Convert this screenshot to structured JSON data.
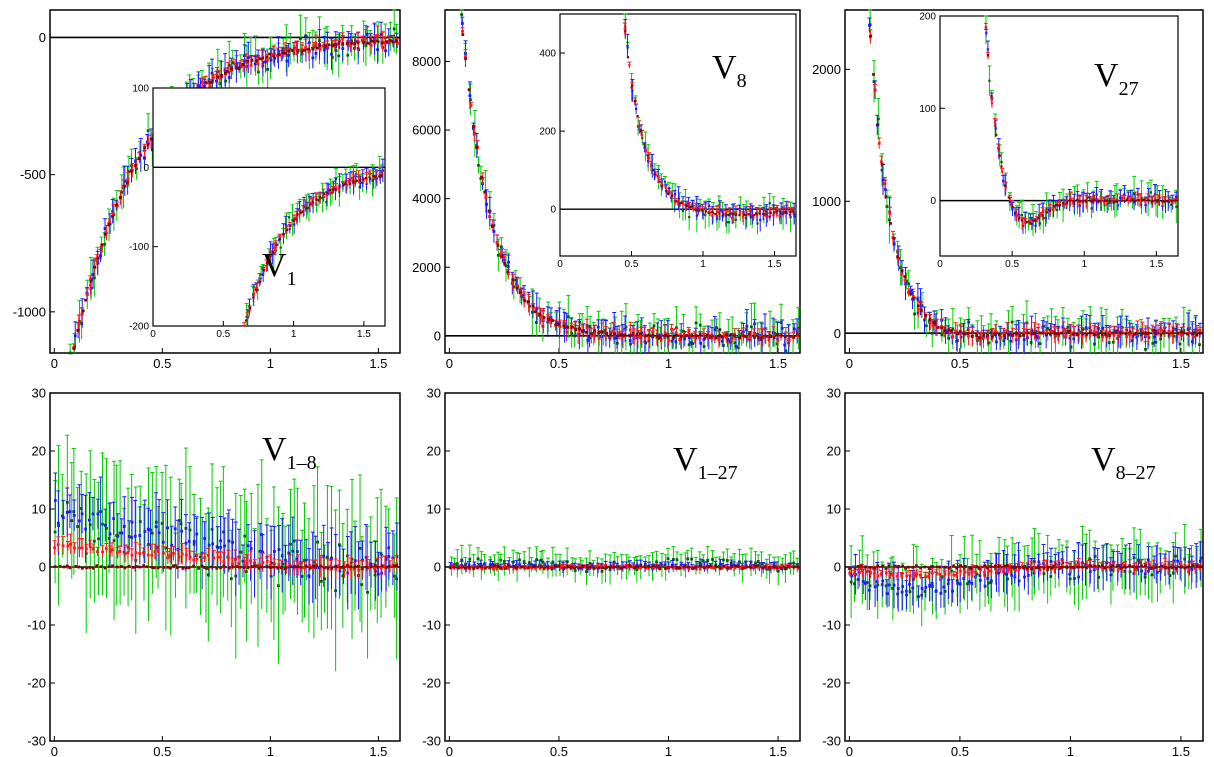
{
  "figure": {
    "colors": {
      "green": "#00cc00",
      "blue": "#1a1aff",
      "red": "#ff1a1a",
      "darkred": "#8b0000",
      "axis": "#000000"
    },
    "series_names": [
      "green",
      "blue",
      "red",
      "darkred"
    ]
  },
  "chart_data": [
    {
      "id": "p1",
      "type": "scatter",
      "title_main": "V",
      "title_sub": "1",
      "xlim": [
        -0.02,
        1.6
      ],
      "ylim": [
        -1150,
        100
      ],
      "xticks": [
        "0",
        "0.5",
        "1",
        "1.5"
      ],
      "xtick_values": [
        0,
        0.5,
        1,
        1.5
      ],
      "yticks": [
        "-1000",
        "-500",
        "0"
      ],
      "ytick_values": [
        -1000,
        -500,
        0
      ],
      "curve": {
        "kind": "v1",
        "A": 1500,
        "k": 3.1
      },
      "inset": {
        "xlim": [
          0,
          1.65
        ],
        "ylim": [
          -200,
          100
        ],
        "xticks": [
          "0",
          "0.5",
          "1",
          "1.5"
        ],
        "xtick_values": [
          0,
          0.5,
          1,
          1.5
        ],
        "yticks": [
          "-200",
          "-100",
          "0",
          "100"
        ],
        "ytick_values": [
          -200,
          -100,
          0,
          100
        ],
        "curve": {
          "kind": "v1",
          "A": 1500,
          "k": 3.1
        }
      }
    },
    {
      "id": "p2",
      "type": "scatter",
      "title_main": "V",
      "title_sub": "8",
      "xlim": [
        -0.02,
        1.6
      ],
      "ylim": [
        -500,
        9500
      ],
      "xticks": [
        "0",
        "0.5",
        "1",
        "1.5"
      ],
      "xtick_values": [
        0,
        0.5,
        1,
        1.5
      ],
      "yticks": [
        "0",
        "2000",
        "4000",
        "6000",
        "8000"
      ],
      "ytick_values": [
        0,
        2000,
        4000,
        6000,
        8000
      ],
      "curve": {
        "kind": "decay",
        "A": 14000,
        "k": 7.5,
        "d": -15
      },
      "inset": {
        "xlim": [
          0,
          1.65
        ],
        "ylim": [
          -120,
          500
        ],
        "xticks": [
          "0",
          "0.5",
          "1",
          "1.5"
        ],
        "xtick_values": [
          0,
          0.5,
          1,
          1.5
        ],
        "yticks": [
          "0",
          "200",
          "400"
        ],
        "ytick_values": [
          0,
          200,
          400
        ],
        "curve": {
          "kind": "decay",
          "A": 14000,
          "k": 7.5,
          "d": -15
        }
      }
    },
    {
      "id": "p3",
      "type": "scatter",
      "title_main": "V",
      "title_sub": "27",
      "xlim": [
        -0.02,
        1.6
      ],
      "ylim": [
        -150,
        2450
      ],
      "xticks": [
        "0",
        "0.5",
        "1",
        "1.5"
      ],
      "xtick_values": [
        0,
        0.5,
        1,
        1.5
      ],
      "yticks": [
        "0",
        "1000",
        "2000"
      ],
      "ytick_values": [
        0,
        1000,
        2000
      ],
      "curve": {
        "kind": "v27",
        "A": 6500,
        "k": 11,
        "dip": 35
      },
      "inset": {
        "xlim": [
          0,
          1.65
        ],
        "ylim": [
          -60,
          200
        ],
        "xticks": [
          "0",
          "0.5",
          "1",
          "1.5"
        ],
        "xtick_values": [
          0,
          0.5,
          1,
          1.5
        ],
        "yticks": [
          "0",
          "100",
          "200"
        ],
        "ytick_values": [
          0,
          100,
          200
        ],
        "curve": {
          "kind": "v27",
          "A": 6500,
          "k": 11,
          "dip": 35
        }
      }
    },
    {
      "id": "p4",
      "type": "scatter",
      "title_main": "V",
      "title_sub": "1–8",
      "xlim": [
        -0.02,
        1.6
      ],
      "ylim": [
        -30,
        30
      ],
      "xticks": [
        "0",
        "0.5",
        "1",
        "1.5"
      ],
      "xtick_values": [
        0,
        0.5,
        1,
        1.5
      ],
      "yticks": [
        "-30",
        "-20",
        "-10",
        "0",
        "10",
        "20",
        "30"
      ],
      "ytick_values": [
        -30,
        -20,
        -10,
        0,
        10,
        20,
        30
      ],
      "curve": {
        "kind": "mix",
        "levels": {
          "green": 6,
          "blue": 8,
          "red": 3
        },
        "spread": {
          "green": 9,
          "blue": 4,
          "red": 1.2
        }
      }
    },
    {
      "id": "p5",
      "type": "scatter",
      "title_main": "V",
      "title_sub": "1–27",
      "xlim": [
        -0.02,
        1.6
      ],
      "ylim": [
        -30,
        30
      ],
      "xticks": [
        "0",
        "0.5",
        "1",
        "1.5"
      ],
      "xtick_values": [
        0,
        0.5,
        1,
        1.5
      ],
      "yticks": [
        "-30",
        "-20",
        "-10",
        "0",
        "10",
        "20",
        "30"
      ],
      "ytick_values": [
        -30,
        -20,
        -10,
        0,
        10,
        20,
        30
      ],
      "curve": {
        "kind": "flat",
        "levels": {
          "green": 0.8,
          "blue": 0.2,
          "red": -0.2
        },
        "spread": {
          "green": 1.6,
          "blue": 0.6,
          "red": 0.3
        }
      }
    },
    {
      "id": "p6",
      "type": "scatter",
      "title_main": "V",
      "title_sub": "8–27",
      "xlim": [
        -0.02,
        1.6
      ],
      "ylim": [
        -30,
        30
      ],
      "xticks": [
        "0",
        "0.5",
        "1",
        "1.5"
      ],
      "xtick_values": [
        0,
        0.5,
        1,
        1.5
      ],
      "yticks": [
        "-30",
        "-20",
        "-10",
        "0",
        "10",
        "20",
        "30"
      ],
      "ytick_values": [
        -30,
        -20,
        -10,
        0,
        10,
        20,
        30
      ],
      "curve": {
        "kind": "neg",
        "levels": {
          "green": -3,
          "blue": -4,
          "red": -1.5
        },
        "spread": {
          "green": 4,
          "blue": 2.5,
          "red": 0.8
        }
      }
    }
  ]
}
